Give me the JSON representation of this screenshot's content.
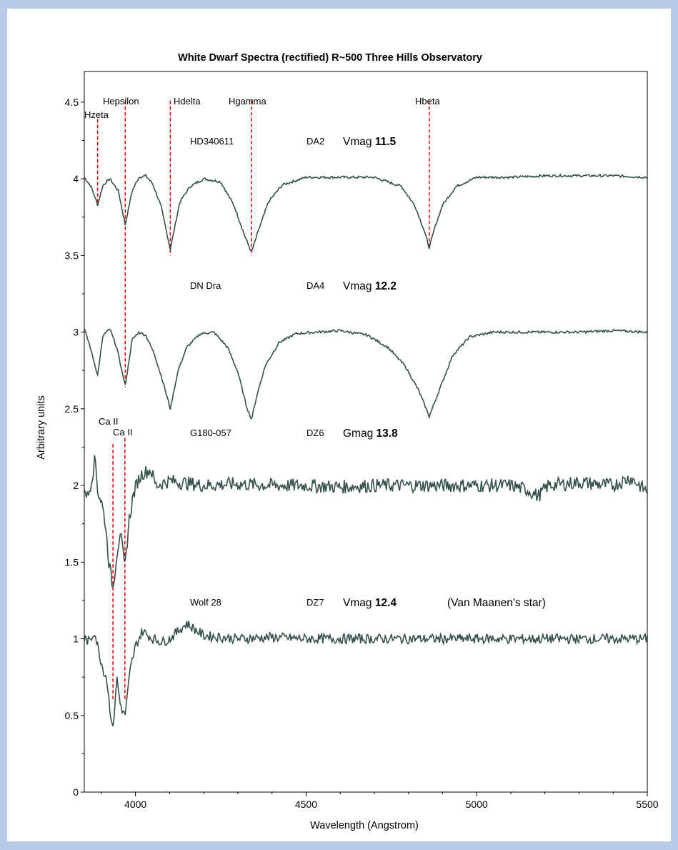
{
  "chart_data": {
    "type": "line",
    "title": "White Dwarf Spectra (rectified)  R~500  Three Hills Observatory",
    "xlabel": "Wavelength (Angstrom)",
    "ylabel": "Arbitrary units",
    "xlim": [
      3850,
      5500
    ],
    "ylim": [
      0,
      4.7
    ],
    "xticks": [
      4000,
      4500,
      5000,
      5500
    ],
    "yticks": [
      0,
      0.5,
      1,
      1.5,
      2,
      2.5,
      3,
      3.5,
      4,
      4.5
    ],
    "grid": false,
    "line_color": "#34504c",
    "marker_color": "#e00000",
    "spectral_lines": [
      {
        "name": "Hzeta",
        "wavelength": 3889
      },
      {
        "name": "Hepsilon",
        "wavelength": 3970
      },
      {
        "name": "Hdelta",
        "wavelength": 4102
      },
      {
        "name": "Hgamma",
        "wavelength": 4340
      },
      {
        "name": "Hbeta",
        "wavelength": 4861
      },
      {
        "name": "Ca II",
        "wavelength": 3934
      },
      {
        "name": "Ca II",
        "wavelength": 3969
      }
    ],
    "series": [
      {
        "star": "HD340611",
        "type": "DA2",
        "mag_band": "Vmag",
        "mag": "11.5",
        "note": "",
        "continuum": 4.0,
        "x": [
          3850,
          3870,
          3889,
          3905,
          3925,
          3950,
          3970,
          3990,
          4010,
          4030,
          4050,
          4075,
          4102,
          4130,
          4160,
          4200,
          4250,
          4290,
          4320,
          4340,
          4360,
          4390,
          4430,
          4500,
          4600,
          4700,
          4780,
          4820,
          4845,
          4861,
          4877,
          4900,
          4940,
          5000,
          5100,
          5200,
          5300,
          5400,
          5500
        ],
        "y": [
          4.01,
          3.95,
          3.83,
          3.96,
          4.0,
          3.92,
          3.7,
          3.92,
          4.01,
          4.02,
          3.97,
          3.82,
          3.54,
          3.85,
          3.95,
          4.0,
          3.98,
          3.82,
          3.63,
          3.52,
          3.66,
          3.85,
          3.96,
          4.01,
          4.01,
          4.01,
          3.95,
          3.82,
          3.67,
          3.55,
          3.68,
          3.83,
          3.95,
          4.01,
          4.01,
          4.02,
          4.02,
          4.02,
          4.01
        ]
      },
      {
        "star": "DN Dra",
        "type": "DA4",
        "mag_band": "Vmag",
        "mag": "12.2",
        "note": "",
        "continuum": 3.0,
        "x": [
          3850,
          3865,
          3889,
          3905,
          3925,
          3945,
          3970,
          3990,
          4010,
          4030,
          4055,
          4080,
          4102,
          4125,
          4150,
          4190,
          4230,
          4270,
          4300,
          4325,
          4340,
          4355,
          4380,
          4420,
          4470,
          4530,
          4600,
          4680,
          4740,
          4790,
          4830,
          4861,
          4890,
          4930,
          4980,
          5050,
          5150,
          5300,
          5400,
          5500
        ],
        "y": [
          3.02,
          2.92,
          2.72,
          2.98,
          3.02,
          2.9,
          2.65,
          2.95,
          3.0,
          2.98,
          2.86,
          2.68,
          2.5,
          2.75,
          2.9,
          2.99,
          3.0,
          2.9,
          2.74,
          2.52,
          2.43,
          2.58,
          2.78,
          2.93,
          2.99,
          3.0,
          3.01,
          2.98,
          2.9,
          2.78,
          2.62,
          2.45,
          2.62,
          2.85,
          2.97,
          3.0,
          3.0,
          3.0,
          3.01,
          3.0
        ]
      },
      {
        "star": "G180-057",
        "type": "DZ6",
        "mag_band": "Gmag",
        "mag": "13.8",
        "note": "",
        "continuum": 2.0,
        "x": [
          3850,
          3860,
          3872,
          3882,
          3890,
          3900,
          3912,
          3922,
          3934,
          3945,
          3955,
          3969,
          3980,
          3992,
          4005,
          4020,
          4045,
          4060,
          4100,
          4200,
          4300,
          4400,
          4500,
          4600,
          4700,
          4800,
          4900,
          5000,
          5100,
          5150,
          5180,
          5210,
          5300,
          5400,
          5450,
          5500
        ],
        "y": [
          2.0,
          1.92,
          2.05,
          2.18,
          1.95,
          1.9,
          1.75,
          1.5,
          1.33,
          1.55,
          1.7,
          1.45,
          1.75,
          1.92,
          2.02,
          2.08,
          2.1,
          2.0,
          2.03,
          2.0,
          2.01,
          2.0,
          2.0,
          1.99,
          2.0,
          2.0,
          2.0,
          2.0,
          2.0,
          1.97,
          1.93,
          2.0,
          2.02,
          2.0,
          2.05,
          1.96
        ]
      },
      {
        "star": "Wolf 28",
        "type": "DZ7",
        "mag_band": "Vmag",
        "mag": "12.4",
        "note": "(Van Maanen's star)",
        "continuum": 1.0,
        "x": [
          3850,
          3865,
          3880,
          3892,
          3905,
          3915,
          3925,
          3934,
          3945,
          3955,
          3969,
          3985,
          4000,
          4020,
          4050,
          4080,
          4100,
          4150,
          4200,
          4300,
          4400,
          4500,
          4600,
          4700,
          4800,
          4900,
          5000,
          5100,
          5200,
          5300,
          5400,
          5500
        ],
        "y": [
          1.0,
          0.98,
          1.05,
          0.92,
          0.8,
          0.75,
          0.55,
          0.4,
          0.75,
          0.58,
          0.49,
          0.8,
          0.95,
          1.05,
          1.0,
          0.98,
          1.0,
          1.1,
          1.02,
          1.0,
          1.01,
          1.0,
          1.0,
          1.0,
          1.0,
          1.0,
          1.0,
          1.0,
          1.0,
          1.0,
          1.0,
          1.0
        ]
      }
    ]
  }
}
